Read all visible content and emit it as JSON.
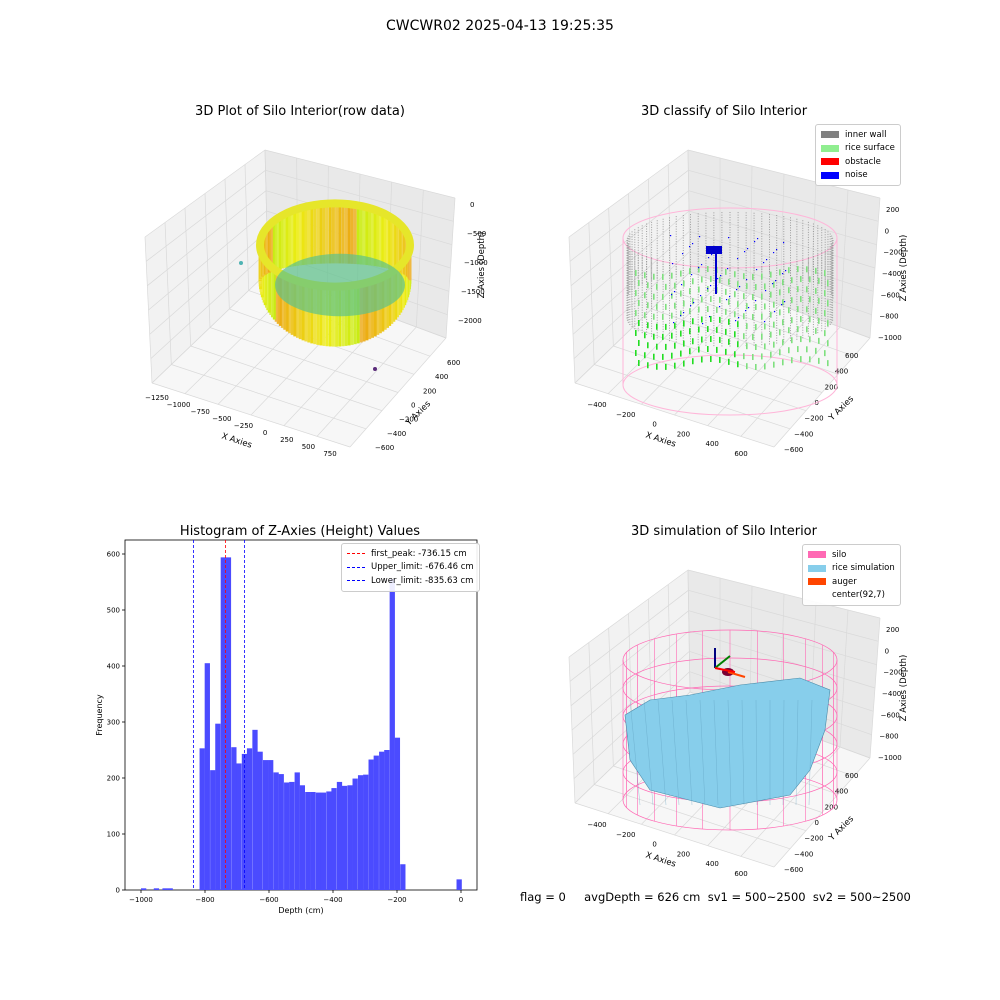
{
  "suptitle": "CWCWR02 2025-04-13 19:25:35",
  "footer": "flag = 0     avgDepth = 626 cm  sv1 = 500~2500  sv2 = 500~2500",
  "panels": {
    "raw": {
      "title": "3D Plot of Silo Interior(row data)",
      "xlabel": "X Axies",
      "ylabel": "Y Axies",
      "zlabel": "Z Axies (Depth)",
      "xticks": [
        "−1250",
        "−1000",
        "−750",
        "−500",
        "−250",
        "0",
        "250",
        "500",
        "750"
      ],
      "yticks": [
        "600",
        "400",
        "200",
        "0",
        "−200",
        "−400",
        "−600"
      ],
      "zticks": [
        "0",
        "−500",
        "−1000",
        "−1500",
        "−2000"
      ]
    },
    "classify": {
      "title": "3D classify of Silo Interior",
      "xlabel": "X Axies",
      "ylabel": "Y Axies",
      "zlabel": "Z Axies (Depth)",
      "xticks": [
        "−400",
        "−200",
        "0",
        "200",
        "400",
        "600"
      ],
      "yticks": [
        "600",
        "400",
        "200",
        "0",
        "−200",
        "−400",
        "−600"
      ],
      "zticks": [
        "200",
        "0",
        "−200",
        "−400",
        "−600",
        "−800",
        "−1000"
      ],
      "legend": [
        {
          "label": "inner wall",
          "color": "#808080"
        },
        {
          "label": "rice surface",
          "color": "#90ee90"
        },
        {
          "label": "obstacle",
          "color": "#ff0000"
        },
        {
          "label": "noise",
          "color": "#0000ff"
        }
      ]
    },
    "simulation": {
      "title": "3D simulation of Silo Interior",
      "xlabel": "X Axies",
      "ylabel": "Y Axies",
      "zlabel": "Z Axies (Depth)",
      "xticks": [
        "−400",
        "−200",
        "0",
        "200",
        "400",
        "600"
      ],
      "yticks": [
        "600",
        "400",
        "200",
        "0",
        "−200",
        "−400",
        "−600"
      ],
      "zticks": [
        "200",
        "0",
        "−200",
        "−400",
        "−600",
        "−800",
        "−1000"
      ],
      "legend": [
        {
          "label": "silo",
          "color": "#ff69b4"
        },
        {
          "label": "rice simulation",
          "color": "#87ceeb"
        },
        {
          "label": "auger",
          "color": "#ff4500"
        },
        {
          "label": "center(92,7)",
          "color": ""
        }
      ]
    }
  },
  "chart_data": [
    {
      "type": "histogram",
      "title": "Histogram of Z-Axies (Height) Values",
      "xlabel": "Depth (cm)",
      "ylabel": "Frequency",
      "xlim": [
        -1050,
        50
      ],
      "ylim": [
        0,
        625
      ],
      "xticks": [
        -1000,
        -800,
        -600,
        -400,
        -200,
        0
      ],
      "yticks": [
        0,
        100,
        200,
        300,
        400,
        500,
        600
      ],
      "bin_width": 16.5,
      "bins": [
        {
          "x0": -1000,
          "count": 3
        },
        {
          "x0": -960,
          "count": 3
        },
        {
          "x0": -933,
          "count": 3
        },
        {
          "x0": -917,
          "count": 3
        },
        {
          "x0": -817,
          "count": 253
        },
        {
          "x0": -801,
          "count": 405
        },
        {
          "x0": -784,
          "count": 214
        },
        {
          "x0": -768,
          "count": 297
        },
        {
          "x0": -751,
          "count": 594
        },
        {
          "x0": -735,
          "count": 594
        },
        {
          "x0": -718,
          "count": 255
        },
        {
          "x0": -702,
          "count": 226
        },
        {
          "x0": -685,
          "count": 243
        },
        {
          "x0": -669,
          "count": 253
        },
        {
          "x0": -652,
          "count": 286
        },
        {
          "x0": -636,
          "count": 247
        },
        {
          "x0": -619,
          "count": 232
        },
        {
          "x0": -603,
          "count": 232
        },
        {
          "x0": -586,
          "count": 210
        },
        {
          "x0": -570,
          "count": 207
        },
        {
          "x0": -553,
          "count": 192
        },
        {
          "x0": -537,
          "count": 193
        },
        {
          "x0": -520,
          "count": 210
        },
        {
          "x0": -504,
          "count": 187
        },
        {
          "x0": -487,
          "count": 175
        },
        {
          "x0": -471,
          "count": 175
        },
        {
          "x0": -454,
          "count": 174
        },
        {
          "x0": -438,
          "count": 174
        },
        {
          "x0": -421,
          "count": 176
        },
        {
          "x0": -405,
          "count": 182
        },
        {
          "x0": -388,
          "count": 193
        },
        {
          "x0": -372,
          "count": 186
        },
        {
          "x0": -355,
          "count": 187
        },
        {
          "x0": -339,
          "count": 199
        },
        {
          "x0": -322,
          "count": 205
        },
        {
          "x0": -306,
          "count": 206
        },
        {
          "x0": -289,
          "count": 233
        },
        {
          "x0": -273,
          "count": 240
        },
        {
          "x0": -256,
          "count": 247
        },
        {
          "x0": -240,
          "count": 250
        },
        {
          "x0": -223,
          "count": 555
        },
        {
          "x0": -207,
          "count": 272
        },
        {
          "x0": -190,
          "count": 46
        },
        {
          "x0": -14,
          "count": 19
        }
      ],
      "vlines": [
        {
          "label": "first_peak: -736.15 cm",
          "x": -736.15,
          "color": "#ff0000"
        },
        {
          "label": "Upper_limit: -676.46 cm",
          "x": -676.46,
          "color": "#0000ff"
        },
        {
          "label": "Lower_limit: -835.63 cm",
          "x": -835.63,
          "color": "#0000ff"
        }
      ],
      "bar_color": "#4b4bff",
      "legend_position": "upper right"
    }
  ]
}
